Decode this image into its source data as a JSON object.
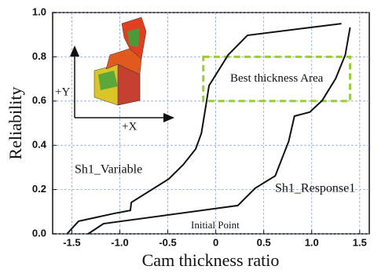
{
  "chart_data": {
    "type": "line",
    "xlabel": "Cam thickness ratio",
    "ylabel": "Reliability",
    "xlim": [
      -1.7,
      1.6
    ],
    "ylim": [
      0,
      1
    ],
    "xticks": [
      -1.5,
      {
        "value": -1,
        "label": "-1.0"
      },
      -0.5,
      0,
      0.5,
      {
        "value": 1,
        "label": "1.0"
      },
      1.5
    ],
    "yticks": [
      {
        "value": 0,
        "label": "0.0"
      },
      0.2,
      0.4,
      0.6,
      0.8,
      {
        "value": 1,
        "label": "1.0"
      }
    ],
    "grid": true,
    "series": [
      {
        "name": "Sh1_Variable",
        "color": "#111111",
        "x": [
          -1.55,
          -1.43,
          -1.06,
          -0.89,
          -0.88,
          -0.49,
          -0.34,
          -0.21,
          -0.15,
          -0.11,
          -0.07,
          0.13,
          0.33,
          1.31
        ],
        "values": [
          0,
          0.057,
          0.092,
          0.106,
          0.142,
          0.248,
          0.312,
          0.383,
          0.454,
          0.56,
          0.67,
          0.809,
          0.897,
          0.95
        ]
      },
      {
        "name": "Sh1_Response1",
        "color": "#111111",
        "x": [
          -1.33,
          -1.17,
          0.23,
          0.41,
          0.62,
          0.76,
          0.82,
          0.98,
          1.11,
          1.25,
          1.35,
          1.4
        ],
        "values": [
          0,
          0.046,
          0.128,
          0.206,
          0.262,
          0.418,
          0.532,
          0.55,
          0.603,
          0.702,
          0.809,
          0.933
        ]
      }
    ],
    "highlight": {
      "label": "Best thickness Area",
      "xlim": [
        -0.13,
        1.4
      ],
      "ylim": [
        0.6,
        0.8
      ],
      "color": "#9acd32"
    },
    "annotation": "Initial Point",
    "inset_labels": [
      "+Y",
      "+X"
    ]
  }
}
